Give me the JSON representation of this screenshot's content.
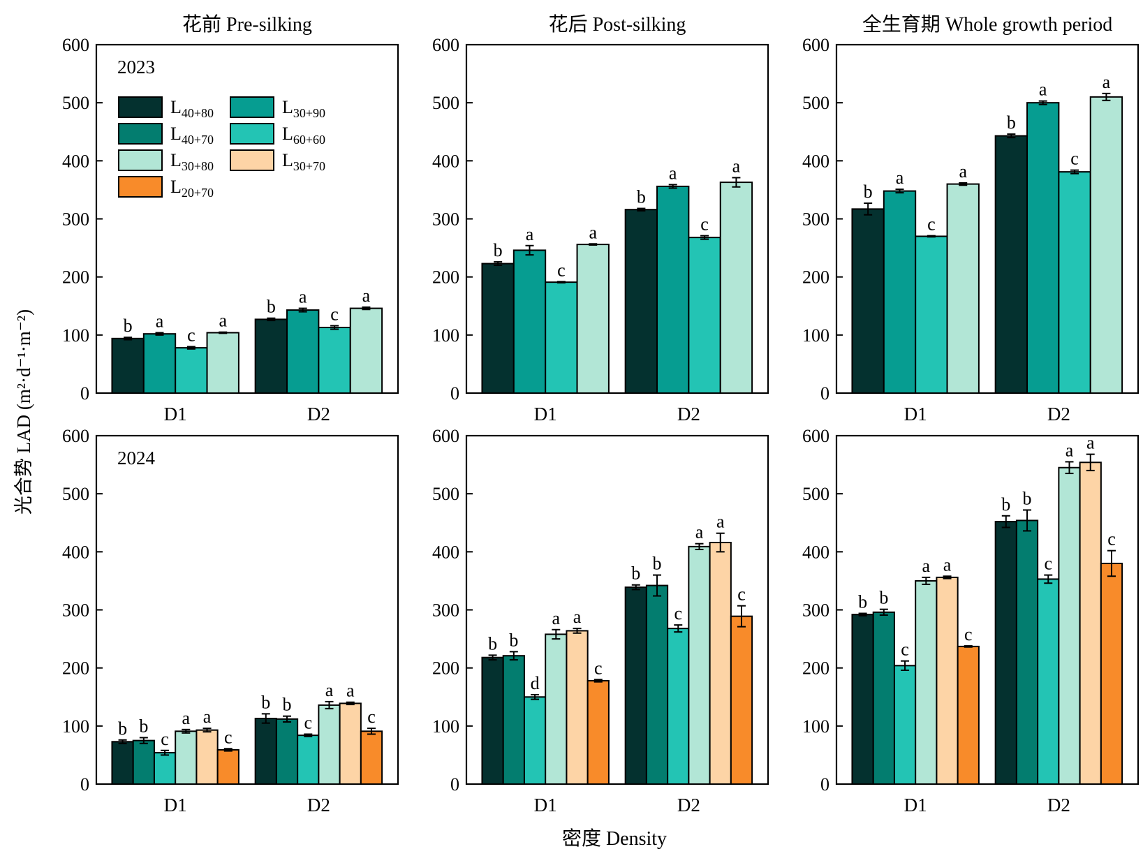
{
  "figure": {
    "ylabel": "光合势 LAD (m²·d⁻¹·m⁻²)",
    "xlabel": "密度 Density"
  },
  "colors": {
    "L40+80": "#04312f",
    "L40+70": "#037d6f",
    "L30+90": "#069d91",
    "L60+60": "#23c4b4",
    "L30+80": "#b2e6d6",
    "L30+70": "#fdd4a6",
    "L20+70": "#f88b2a"
  },
  "legend": [
    {
      "key": "L40+80",
      "base": "L",
      "sub": "40+80"
    },
    {
      "key": "L30+90",
      "base": "L",
      "sub": "30+90"
    },
    {
      "key": "L40+70",
      "base": "L",
      "sub": "40+70"
    },
    {
      "key": "L60+60",
      "base": "L",
      "sub": "60+60"
    },
    {
      "key": "L30+80",
      "base": "L",
      "sub": "30+80"
    },
    {
      "key": "L30+70",
      "base": "L",
      "sub": "30+70"
    },
    {
      "key": "L20+70",
      "base": "L",
      "sub": "20+70"
    }
  ],
  "chart_data": [
    {
      "type": "bar",
      "title": "花前 Pre-silking",
      "year": "2023",
      "categories": [
        "D1",
        "D2"
      ],
      "ylim": [
        0,
        600
      ],
      "yticks": [
        0,
        100,
        200,
        300,
        400,
        500,
        600
      ],
      "series": [
        {
          "name": "L40+80",
          "values": [
            94,
            127
          ],
          "errors": [
            2,
            2
          ],
          "letters": [
            "b",
            "b"
          ]
        },
        {
          "name": "L30+90",
          "values": [
            102,
            143
          ],
          "errors": [
            2,
            3
          ],
          "letters": [
            "a",
            "a"
          ]
        },
        {
          "name": "L60+60",
          "values": [
            78,
            113
          ],
          "errors": [
            2,
            3
          ],
          "letters": [
            "c",
            "c"
          ]
        },
        {
          "name": "L30+80",
          "values": [
            104,
            146
          ],
          "errors": [
            1,
            2
          ],
          "letters": [
            "a",
            "a"
          ]
        }
      ]
    },
    {
      "type": "bar",
      "title": "花后 Post-silking",
      "year": "",
      "categories": [
        "D1",
        "D2"
      ],
      "ylim": [
        0,
        600
      ],
      "yticks": [
        0,
        100,
        200,
        300,
        400,
        500,
        600
      ],
      "series": [
        {
          "name": "L40+80",
          "values": [
            223,
            316
          ],
          "errors": [
            3,
            2
          ],
          "letters": [
            "b",
            "b"
          ]
        },
        {
          "name": "L30+90",
          "values": [
            246,
            356
          ],
          "errors": [
            8,
            3
          ],
          "letters": [
            "a",
            "a"
          ]
        },
        {
          "name": "L60+60",
          "values": [
            191,
            268
          ],
          "errors": [
            1,
            3
          ],
          "letters": [
            "c",
            "c"
          ]
        },
        {
          "name": "L30+80",
          "values": [
            256,
            363
          ],
          "errors": [
            1,
            8
          ],
          "letters": [
            "a",
            "a"
          ]
        }
      ]
    },
    {
      "type": "bar",
      "title": "全生育期 Whole growth period",
      "year": "",
      "categories": [
        "D1",
        "D2"
      ],
      "ylim": [
        0,
        600
      ],
      "yticks": [
        0,
        100,
        200,
        300,
        400,
        500,
        600
      ],
      "series": [
        {
          "name": "L40+80",
          "values": [
            317,
            443
          ],
          "errors": [
            10,
            3
          ],
          "letters": [
            "b",
            "b"
          ]
        },
        {
          "name": "L30+90",
          "values": [
            348,
            500
          ],
          "errors": [
            3,
            3
          ],
          "letters": [
            "a",
            "a"
          ]
        },
        {
          "name": "L60+60",
          "values": [
            270,
            381
          ],
          "errors": [
            1,
            3
          ],
          "letters": [
            "c",
            "c"
          ]
        },
        {
          "name": "L30+80",
          "values": [
            360,
            510
          ],
          "errors": [
            2,
            6
          ],
          "letters": [
            "a",
            "a"
          ]
        }
      ]
    },
    {
      "type": "bar",
      "title": "",
      "year": "2024",
      "categories": [
        "D1",
        "D2"
      ],
      "ylim": [
        0,
        600
      ],
      "yticks": [
        0,
        100,
        200,
        300,
        400,
        500,
        600
      ],
      "series": [
        {
          "name": "L40+80",
          "values": [
            73,
            113
          ],
          "errors": [
            3,
            8
          ],
          "letters": [
            "b",
            "b"
          ]
        },
        {
          "name": "L40+70",
          "values": [
            75,
            112
          ],
          "errors": [
            5,
            5
          ],
          "letters": [
            "b",
            "b"
          ]
        },
        {
          "name": "L60+60",
          "values": [
            54,
            84
          ],
          "errors": [
            4,
            2
          ],
          "letters": [
            "c",
            "c"
          ]
        },
        {
          "name": "L30+80",
          "values": [
            91,
            136
          ],
          "errors": [
            3,
            6
          ],
          "letters": [
            "a",
            "a"
          ]
        },
        {
          "name": "L30+70",
          "values": [
            93,
            139
          ],
          "errors": [
            3,
            2
          ],
          "letters": [
            "a",
            "a"
          ]
        },
        {
          "name": "L20+70",
          "values": [
            59,
            91
          ],
          "errors": [
            2,
            5
          ],
          "letters": [
            "c",
            "c"
          ]
        }
      ]
    },
    {
      "type": "bar",
      "title": "",
      "year": "",
      "categories": [
        "D1",
        "D2"
      ],
      "ylim": [
        0,
        600
      ],
      "yticks": [
        0,
        100,
        200,
        300,
        400,
        500,
        600
      ],
      "series": [
        {
          "name": "L40+80",
          "values": [
            218,
            339
          ],
          "errors": [
            4,
            4
          ],
          "letters": [
            "b",
            "b"
          ]
        },
        {
          "name": "L40+70",
          "values": [
            221,
            342
          ],
          "errors": [
            7,
            18
          ],
          "letters": [
            "b",
            "b"
          ]
        },
        {
          "name": "L60+60",
          "values": [
            150,
            268
          ],
          "errors": [
            4,
            6
          ],
          "letters": [
            "d",
            "c"
          ]
        },
        {
          "name": "L30+80",
          "values": [
            258,
            409
          ],
          "errors": [
            8,
            5
          ],
          "letters": [
            "a",
            "a"
          ]
        },
        {
          "name": "L30+70",
          "values": [
            264,
            416
          ],
          "errors": [
            4,
            16
          ],
          "letters": [
            "a",
            "a"
          ]
        },
        {
          "name": "L20+70",
          "values": [
            178,
            289
          ],
          "errors": [
            2,
            18
          ],
          "letters": [
            "c",
            "c"
          ]
        }
      ]
    },
    {
      "type": "bar",
      "title": "",
      "year": "",
      "categories": [
        "D1",
        "D2"
      ],
      "ylim": [
        0,
        600
      ],
      "yticks": [
        0,
        100,
        200,
        300,
        400,
        500,
        600
      ],
      "series": [
        {
          "name": "L40+80",
          "values": [
            292,
            452
          ],
          "errors": [
            2,
            10
          ],
          "letters": [
            "b",
            "b"
          ]
        },
        {
          "name": "L40+70",
          "values": [
            296,
            454
          ],
          "errors": [
            5,
            18
          ],
          "letters": [
            "b",
            "b"
          ]
        },
        {
          "name": "L60+60",
          "values": [
            204,
            353
          ],
          "errors": [
            8,
            7
          ],
          "letters": [
            "c",
            "c"
          ]
        },
        {
          "name": "L30+80",
          "values": [
            350,
            545
          ],
          "errors": [
            6,
            10
          ],
          "letters": [
            "a",
            "a"
          ]
        },
        {
          "name": "L30+70",
          "values": [
            356,
            554
          ],
          "errors": [
            2,
            14
          ],
          "letters": [
            "a",
            "a"
          ]
        },
        {
          "name": "L20+70",
          "values": [
            237,
            380
          ],
          "errors": [
            1,
            22
          ],
          "letters": [
            "c",
            "c"
          ]
        }
      ]
    }
  ]
}
